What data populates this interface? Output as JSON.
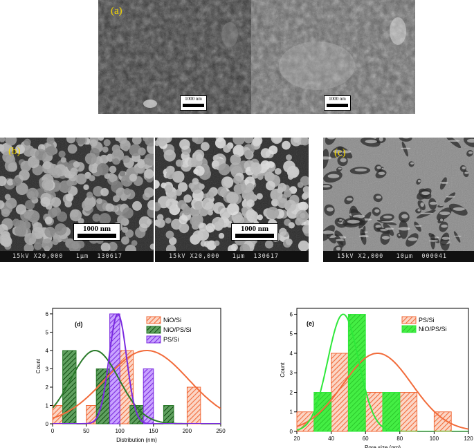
{
  "panel_a": {
    "label": "(a)",
    "scale_left": "1000 nm",
    "scale_right": "1000 nm"
  },
  "panel_b": {
    "label": "(b)",
    "scale_left": "1000 nm",
    "scale_right": "1000 nm",
    "info_left": "15kV X20,000   1µm  130617",
    "info_right": "15kV X20,000   1µm  130617"
  },
  "panel_c": {
    "label": "(c)",
    "info": "15kV X2,000   10µm  000041"
  },
  "chart_data": [
    {
      "type": "bar",
      "panel_label": "(d)",
      "xlabel": "Distribution (nm)",
      "ylabel": "Count",
      "xlim": [
        0,
        250
      ],
      "ylim": [
        0,
        6.3
      ],
      "xticks": [
        0,
        50,
        100,
        150,
        200,
        250
      ],
      "yticks": [
        0,
        1,
        2,
        3,
        4,
        5,
        6
      ],
      "legend_position": "top-right",
      "series": [
        {
          "name": "NiO/Si",
          "color": "#f26b3a",
          "bins": [
            [
              0,
              20,
              1
            ],
            [
              50,
              70,
              1
            ],
            [
              70,
              90,
              2
            ],
            [
              100,
              120,
              4
            ],
            [
              200,
              220,
              2
            ]
          ],
          "fit": {
            "mu": 140,
            "sigma": 62,
            "peak": 4.0
          }
        },
        {
          "name": "NiO/PS/Si",
          "color": "#2a7a2a",
          "bins": [
            [
              15,
              35,
              4
            ],
            [
              65,
              85,
              3
            ],
            [
              115,
              130,
              1
            ],
            [
              130,
              145,
              1
            ],
            [
              165,
              180,
              1
            ]
          ],
          "fit": {
            "mu": 63,
            "sigma": 36,
            "peak": 4.0
          }
        },
        {
          "name": "PS/Si",
          "color": "#7b2be0",
          "bins": [
            [
              85,
              100,
              6
            ],
            [
              135,
              150,
              3
            ]
          ],
          "fit": {
            "mu": 97,
            "sigma": 13,
            "peak": 6.0
          }
        }
      ]
    },
    {
      "type": "bar",
      "panel_label": "(e)",
      "xlabel": "Pore size (nm)",
      "ylabel": "Count",
      "xlim": [
        20,
        120
      ],
      "ylim": [
        0,
        6.3
      ],
      "xticks": [
        20,
        40,
        60,
        80,
        100,
        120
      ],
      "yticks": [
        0,
        1,
        2,
        3,
        4,
        5,
        6
      ],
      "legend_position": "top-right",
      "series": [
        {
          "name": "PS/Si",
          "color": "#f26b3a",
          "bins": [
            [
              20,
              30,
              1
            ],
            [
              40,
              50,
              4
            ],
            [
              60,
              70,
              2
            ],
            [
              70,
              80,
              2
            ],
            [
              80,
              90,
              2
            ],
            [
              100,
              110,
              1
            ]
          ],
          "fit": {
            "mu": 67,
            "sigma": 20,
            "peak": 4.0
          }
        },
        {
          "name": "NiO/PS/Si",
          "color": "#2ee83a",
          "bins": [
            [
              30,
              40,
              2
            ],
            [
              50,
              60,
              6
            ],
            [
              70,
              80,
              2
            ]
          ],
          "fit": {
            "mu": 47,
            "sigma": 9,
            "peak": 6.0
          }
        }
      ]
    }
  ]
}
